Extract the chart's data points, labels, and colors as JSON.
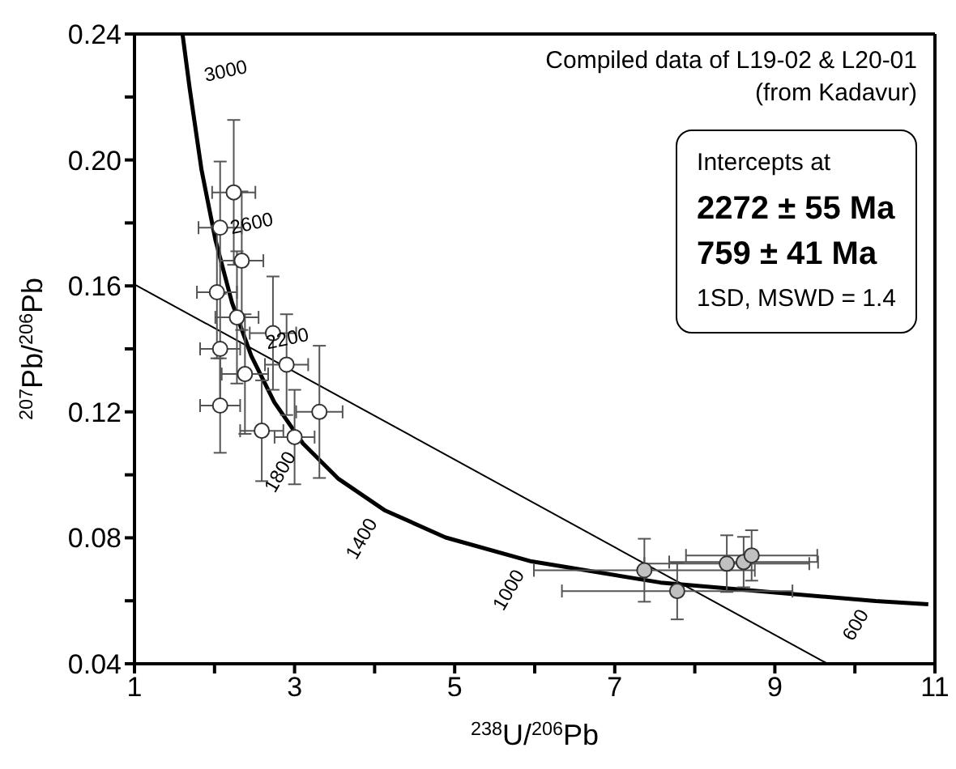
{
  "chart_data": {
    "type": "scatter",
    "xlabel": "$^{238}$U/$^{206}$Pb",
    "ylabel": "$^{207}$Pb/$^{206}$Pb",
    "xlim": [
      1,
      11
    ],
    "xticks": [
      1,
      {
        "value": 2,
        "label": null
      },
      3,
      {
        "value": 4,
        "label": null
      },
      5,
      {
        "value": 6,
        "label": null
      },
      7,
      {
        "value": 8,
        "label": null
      },
      9,
      {
        "value": 10,
        "label": null
      },
      11
    ],
    "ylim": [
      0.04,
      0.24
    ],
    "yticks": [
      {
        "value": 0.04,
        "label": "0.04"
      },
      {
        "value": 0.06,
        "label": null
      },
      {
        "value": 0.08,
        "label": "0.08"
      },
      {
        "value": 0.1,
        "label": null
      },
      {
        "value": 0.12,
        "label": "0.12"
      },
      {
        "value": 0.14,
        "label": null
      },
      {
        "value": 0.16,
        "label": "0.16"
      },
      {
        "value": 0.18,
        "label": null
      },
      {
        "value": 0.2,
        "label": "0.20"
      },
      {
        "value": 0.22,
        "label": null
      },
      {
        "value": 0.24,
        "label": "0.24"
      }
    ],
    "grid": false,
    "legend": false,
    "series": [
      {
        "type": "line",
        "color": "#000000",
        "x": [
          1.6,
          1.689,
          1.838,
          2.013,
          2.217,
          2.459,
          2.748,
          3.104,
          3.55,
          4.122,
          4.887,
          5.96,
          7.57,
          10.26,
          10.917
        ],
        "values": [
          0.24,
          0.2228,
          0.1968,
          0.1744,
          0.1548,
          0.1378,
          0.123,
          0.11,
          0.0987,
          0.0888,
          0.0801,
          0.0725,
          0.0658,
          0.0599,
          0.0589
        ]
      },
      {
        "type": "line",
        "color": "#000000",
        "x": [
          1,
          9.66
        ],
        "values": [
          0.1605,
          0.04
        ]
      },
      {
        "color": "#ffffff",
        "x": [
          2.24,
          2.07,
          2.34,
          2.03,
          2.28,
          2.73,
          2.07,
          2.38,
          2.9,
          2.07,
          2.59,
          3.0,
          3.31
        ],
        "values": [
          0.1897,
          0.1785,
          0.168,
          0.158,
          0.15,
          0.145,
          0.14,
          0.132,
          0.135,
          0.122,
          0.114,
          0.112,
          0.12
        ],
        "xerrors": [
          0.27,
          0.27,
          0.27,
          0.25,
          0.27,
          0.29,
          0.25,
          0.29,
          0.27,
          0.25,
          0.27,
          0.25,
          0.29
        ],
        "errors": [
          0.023,
          0.021,
          0.022,
          0.021,
          0.021,
          0.018,
          0.018,
          0.019,
          0.016,
          0.015,
          0.016,
          0.015,
          0.021
        ]
      },
      {
        "color": "#c0c0c0",
        "x": [
          7.37,
          7.78,
          8.4,
          8.61,
          8.71
        ],
        "values": [
          0.0697,
          0.0631,
          0.0718,
          0.0723,
          0.0744
        ],
        "xerrors": [
          1.38,
          1.44,
          1.03,
          0.93,
          0.82
        ],
        "errors": [
          0.01,
          0.009,
          0.009,
          0.008,
          0.008
        ]
      }
    ],
    "annotations": [
      "Compiled data of L19-02 & L20-01",
      "(from Kadavur)",
      "Intercepts at",
      "2272 ± 55 Ma",
      "759 ± 41 Ma",
      "1SD, MSWD = 1.4",
      {
        "text": "3000",
        "x": 1.689,
        "y": 0.2228
      },
      {
        "text": "2600",
        "x": 2.013,
        "y": 0.1744
      },
      {
        "text": "2200",
        "x": 2.459,
        "y": 0.1378
      },
      {
        "text": "1800",
        "x": 3.104,
        "y": 0.11
      },
      {
        "text": "1400",
        "x": 4.122,
        "y": 0.0888
      },
      {
        "text": "1000",
        "x": 5.96,
        "y": 0.0725
      },
      {
        "text": "600",
        "x": 10.26,
        "y": 0.0599
      }
    ]
  }
}
